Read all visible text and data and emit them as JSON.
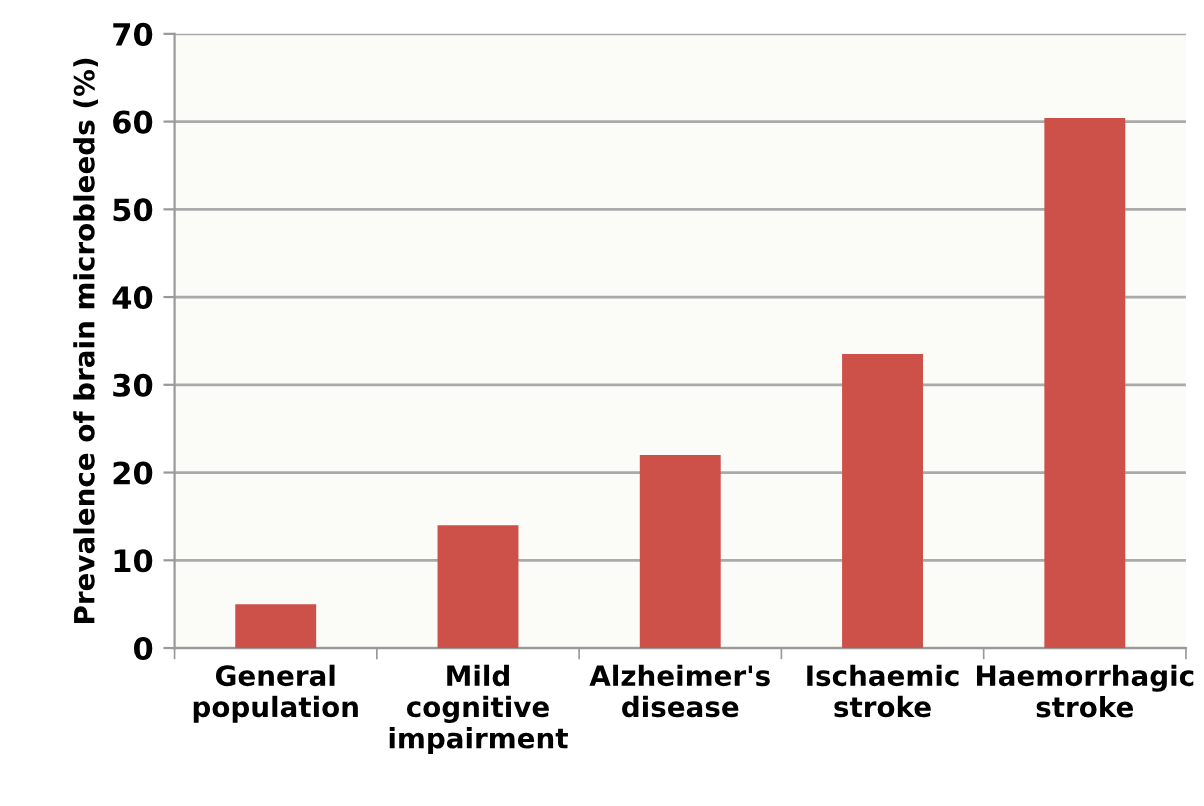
{
  "chart_data": {
    "type": "bar",
    "ylabel": "Prevalence of brain microbleeds (%)",
    "categories": [
      "General\npopulation",
      "Mild\ncognitive\nimpairment",
      "Alzheimer's\ndisease",
      "Ischaemic\nstroke",
      "Haemorrhagic\nstroke"
    ],
    "values": [
      5,
      14,
      22,
      33.5,
      60.4
    ],
    "color": "#cd5049",
    "ylim": [
      0,
      70
    ],
    "yticks": [
      0,
      10,
      20,
      30,
      40,
      50,
      60,
      70
    ],
    "grid": "y"
  }
}
